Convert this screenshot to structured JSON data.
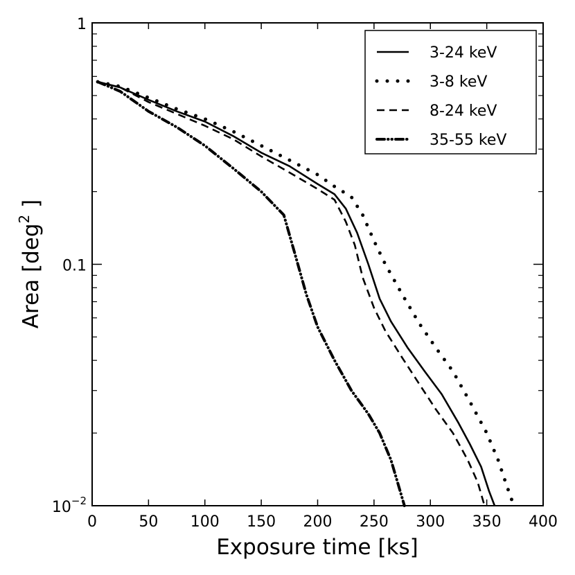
{
  "chart_data": {
    "type": "line",
    "xlabel": "Exposure time [ks]",
    "ylabel": "Area [deg",
    "ylabel_sup": "2",
    "ylabel_end": " ]",
    "xlim": [
      0,
      400
    ],
    "ylim": [
      0.01,
      1
    ],
    "yscale": "log",
    "xticks": [
      0,
      50,
      100,
      150,
      200,
      250,
      300,
      350,
      400
    ],
    "yticks": [
      {
        "value": 1,
        "label": "1"
      },
      {
        "value": 0.1,
        "label": "0.1"
      },
      {
        "value": 0.01,
        "label": "10",
        "sup": "−2"
      }
    ],
    "legend_position": "top-right",
    "series": [
      {
        "name": "3-24 keV",
        "style": "solid",
        "x": [
          5,
          25,
          50,
          75,
          100,
          125,
          150,
          175,
          200,
          215,
          225,
          235,
          245,
          255,
          265,
          280,
          295,
          310,
          325,
          335,
          345,
          352,
          357
        ],
        "y": [
          0.57,
          0.54,
          0.48,
          0.43,
          0.39,
          0.34,
          0.29,
          0.255,
          0.215,
          0.195,
          0.17,
          0.135,
          0.1,
          0.072,
          0.058,
          0.045,
          0.036,
          0.029,
          0.022,
          0.018,
          0.0145,
          0.0115,
          0.01
        ]
      },
      {
        "name": "3-8 keV",
        "style": "dotted",
        "x": [
          5,
          25,
          50,
          75,
          100,
          125,
          150,
          175,
          200,
          215,
          230,
          240,
          250,
          260,
          275,
          290,
          305,
          320,
          335,
          350,
          360,
          368,
          373
        ],
        "y": [
          0.57,
          0.545,
          0.49,
          0.44,
          0.4,
          0.355,
          0.31,
          0.27,
          0.235,
          0.21,
          0.19,
          0.16,
          0.125,
          0.1,
          0.075,
          0.057,
          0.045,
          0.036,
          0.027,
          0.02,
          0.0155,
          0.012,
          0.0103
        ]
      },
      {
        "name": "8-24 keV",
        "style": "dashed",
        "x": [
          5,
          25,
          50,
          75,
          100,
          125,
          150,
          175,
          200,
          215,
          225,
          233,
          240,
          250,
          260,
          275,
          290,
          305,
          320,
          333,
          342,
          348
        ],
        "y": [
          0.57,
          0.54,
          0.47,
          0.42,
          0.375,
          0.33,
          0.28,
          0.24,
          0.205,
          0.185,
          0.15,
          0.12,
          0.088,
          0.066,
          0.053,
          0.041,
          0.032,
          0.025,
          0.02,
          0.0155,
          0.0125,
          0.01
        ]
      },
      {
        "name": "35-55 keV",
        "style": "dashdot",
        "x": [
          5,
          25,
          50,
          75,
          100,
          125,
          150,
          170,
          180,
          190,
          200,
          215,
          230,
          245,
          255,
          265,
          272,
          277
        ],
        "y": [
          0.57,
          0.52,
          0.43,
          0.37,
          0.31,
          0.25,
          0.2,
          0.16,
          0.11,
          0.075,
          0.055,
          0.04,
          0.03,
          0.024,
          0.02,
          0.0155,
          0.012,
          0.01
        ]
      }
    ]
  }
}
